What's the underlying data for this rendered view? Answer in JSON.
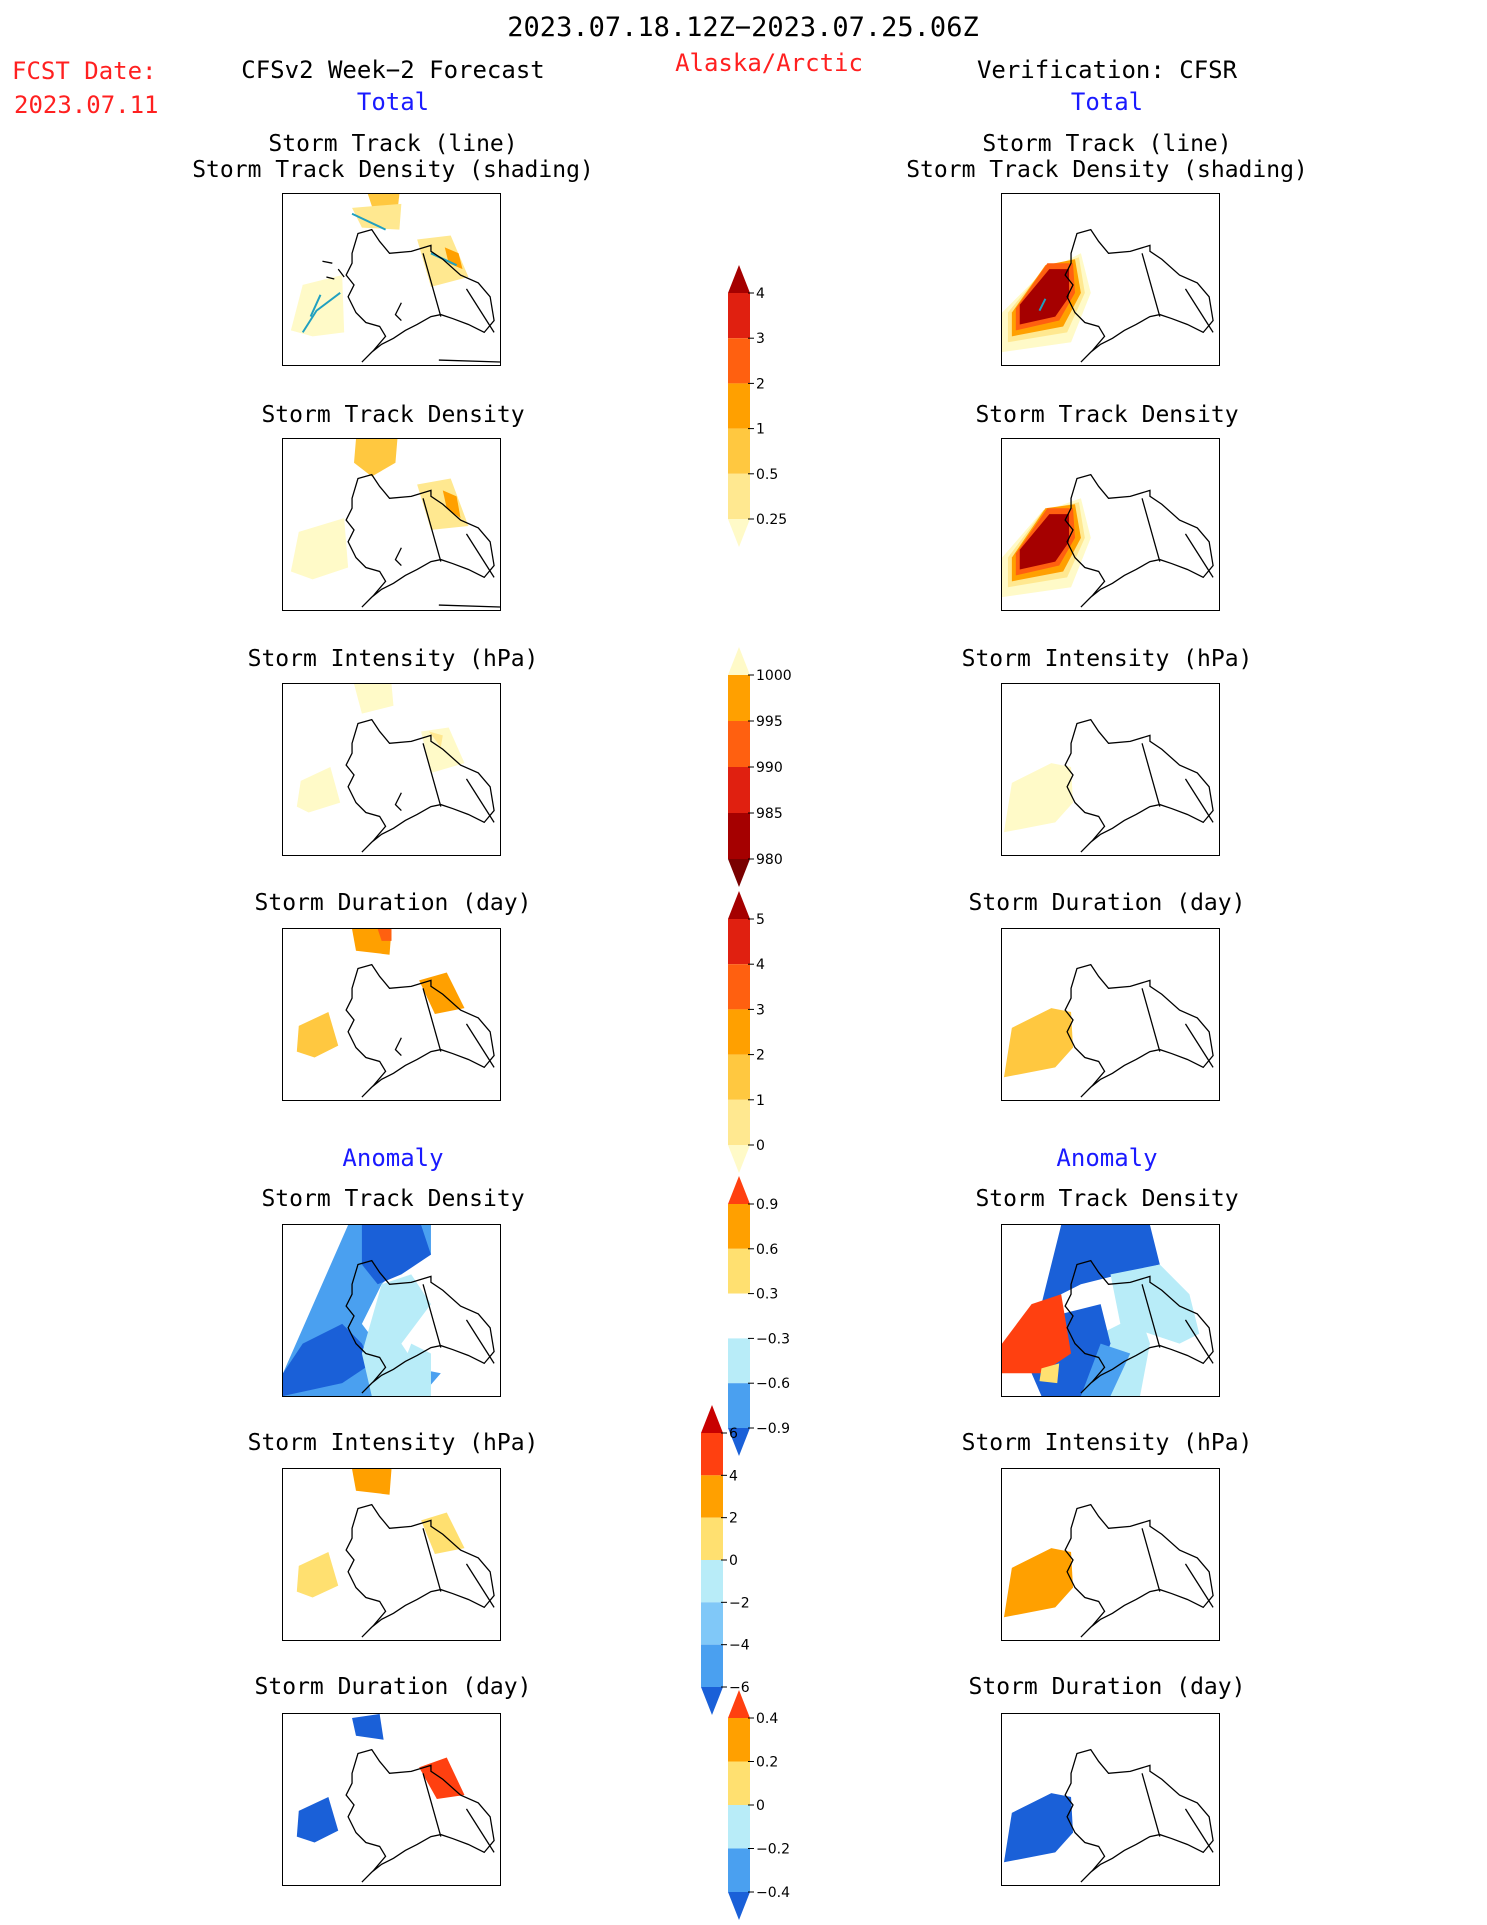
{
  "header": {
    "date_range": "2023.07.18.12Z−2023.07.25.06Z",
    "region": "Alaska/Arctic",
    "fcst_label": "FCST Date:",
    "fcst_date": "2023.07.11",
    "left_title": "CFSv2 Week−2 Forecast",
    "right_title": "Verification: CFSR",
    "left_total": "Total",
    "right_total": "Total",
    "left_anomaly": "Anomaly",
    "right_anomaly": "Anomaly"
  },
  "rows": [
    {
      "title1": "Storm Track (line)",
      "title2": "Storm Track Density (shading)"
    },
    {
      "title1": "Storm Track Density"
    },
    {
      "title1": "Storm Intensity (hPa)"
    },
    {
      "title1": "Storm Duration (day)"
    },
    {
      "title1": "Storm Track Density"
    },
    {
      "title1": "Storm Intensity (hPa)"
    },
    {
      "title1": "Storm Duration (day)"
    }
  ],
  "colorbars": [
    {
      "id": "density",
      "labels": [
        "4",
        "3",
        "2",
        "1",
        "0.5",
        "0.25"
      ],
      "colors": [
        "#a50000",
        "#e02010",
        "#ff6010",
        "#ffa000",
        "#ffc840",
        "#ffe890",
        "#fffac8"
      ]
    },
    {
      "id": "intensity",
      "labels": [
        "1000",
        "995",
        "990",
        "985",
        "980"
      ],
      "colors": [
        "#fffac8",
        "#ffa000",
        "#ff6010",
        "#e02010",
        "#a50000",
        "#7a0000"
      ]
    },
    {
      "id": "duration",
      "labels": [
        "5",
        "4",
        "3",
        "2",
        "1",
        "0"
      ],
      "colors": [
        "#a50000",
        "#e02010",
        "#ff6010",
        "#ffa000",
        "#ffc840",
        "#ffe890",
        "#fffac8"
      ]
    },
    {
      "id": "density-anom",
      "labels": [
        "0.9",
        "0.6",
        "0.3",
        "−0.3",
        "−0.6",
        "−0.9"
      ],
      "colors": [
        "#ff4010",
        "#ffa000",
        "#ffe070",
        "#ffffff",
        "#b8ecf8",
        "#4aa0f0",
        "#1a60d8"
      ]
    },
    {
      "id": "intensity-anom",
      "labels": [
        "6",
        "4",
        "2",
        "0",
        "−2",
        "−4",
        "−6"
      ],
      "colors": [
        "#c80000",
        "#ff4010",
        "#ffa000",
        "#ffe070",
        "#b8ecf8",
        "#80c8f8",
        "#4aa0f0",
        "#1a60d8"
      ]
    },
    {
      "id": "duration-anom",
      "labels": [
        "0.4",
        "0.2",
        "0",
        "−0.2",
        "−0.4"
      ],
      "colors": [
        "#ff4010",
        "#ffa000",
        "#ffe070",
        "#b8ecf8",
        "#4aa0f0",
        "#1a60d8"
      ]
    }
  ],
  "colors": {
    "header_red": "#ff2020",
    "header_blue": "#1a1aff",
    "track_line": "#20a0c0"
  }
}
